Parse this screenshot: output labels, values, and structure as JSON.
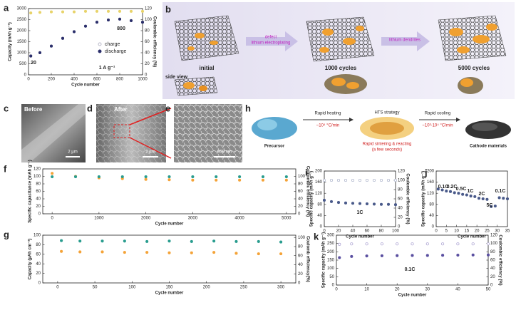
{
  "chart_data": [
    {
      "panel": "a",
      "type": "scatter",
      "x_label": "Cycle number",
      "y_label": "Capacity (mAh g⁻¹)",
      "y2_label": "Coulombic efficiency (%)",
      "x": [
        20,
        100,
        200,
        300,
        400,
        500,
        600,
        700,
        800,
        900,
        1000
      ],
      "series": [
        {
          "name": "charge",
          "color": "#b8b8c8",
          "marker": "open",
          "values": [
            870,
            1010,
            1310,
            1660,
            1960,
            2210,
            2390,
            2490,
            2530,
            2460,
            2390
          ]
        },
        {
          "name": "discharge",
          "color": "#2b2f6b",
          "marker": "filled",
          "values": [
            850,
            1000,
            1300,
            1650,
            1950,
            2200,
            2380,
            2480,
            2520,
            2450,
            2380
          ]
        },
        {
          "color": "#e8d36a",
          "marker": "filled",
          "axis": "y2",
          "values": [
            112,
            113,
            114,
            114,
            114,
            115,
            115,
            115,
            115,
            115,
            115
          ]
        }
      ],
      "xlim": [
        0,
        1000
      ],
      "xticks": [
        0,
        200,
        400,
        600,
        800,
        1000
      ],
      "ylim": [
        0,
        3000
      ],
      "yticks": [
        0,
        500,
        1000,
        1500,
        2000,
        2500,
        3000
      ],
      "y2lim": [
        0,
        120
      ],
      "y2ticks": [
        0,
        20,
        40,
        60,
        80,
        100,
        120
      ],
      "legend": "center-right",
      "annotations": [
        "20",
        "800",
        "1 A g⁻¹"
      ]
    },
    {
      "panel": "f",
      "type": "scatter",
      "x_label": "Cycle number",
      "y_label": "Specific capacitance (mAh g⁻¹)",
      "y2_label": "Coulombic efficiency (%)",
      "x": [
        0,
        500,
        1000,
        1500,
        2000,
        2500,
        3000,
        3500,
        4000,
        4500,
        5000
      ],
      "series": [
        {
          "color": "#f4a338",
          "marker": "filled",
          "values": [
            108,
            100,
            96,
            94,
            92,
            91,
            90,
            90,
            90,
            90,
            90
          ]
        },
        {
          "color": "#2a9d8f",
          "marker": "filled",
          "axis": "y2",
          "values": [
            99,
            99,
            99,
            99,
            99,
            99,
            99,
            99,
            99,
            99,
            99
          ]
        }
      ],
      "xlim": [
        -200,
        5200
      ],
      "xticks": [
        0,
        1000,
        2000,
        3000,
        4000,
        5000
      ],
      "ylim": [
        0,
        120
      ],
      "yticks": [
        0,
        20,
        40,
        60,
        80,
        100,
        120
      ],
      "y2lim": [
        0,
        120
      ],
      "y2ticks": [
        0,
        20,
        40,
        60,
        80,
        100
      ],
      "annotations": []
    },
    {
      "panel": "g",
      "type": "scatter",
      "x_label": "Cycle number",
      "y_label": "Capacity (µAh cm⁻²)",
      "y2_label": "Coulomb efficiency(%)",
      "x": [
        5,
        30,
        60,
        90,
        120,
        150,
        180,
        210,
        240,
        270,
        300
      ],
      "series": [
        {
          "color": "#f4a338",
          "marker": "filled",
          "values": [
            66,
            65,
            65,
            64,
            64,
            63,
            63,
            64,
            62,
            61,
            61
          ]
        },
        {
          "color": "#2a9d8f",
          "marker": "filled",
          "axis": "y2",
          "values": [
            93,
            92,
            92,
            92,
            91,
            92,
            91,
            92,
            91,
            91,
            90
          ]
        }
      ],
      "xlim": [
        -20,
        320
      ],
      "xticks": [
        0,
        50,
        100,
        150,
        200,
        250,
        300
      ],
      "ylim": [
        0,
        100
      ],
      "yticks": [
        0,
        20,
        40,
        60,
        80,
        100
      ],
      "y2lim": [
        0,
        105
      ],
      "y2ticks": [
        0,
        20,
        40,
        60,
        80,
        100
      ],
      "annotations": []
    },
    {
      "panel": "i",
      "type": "scatter",
      "x_label": "Cycle number",
      "y_label": "Specific capacity (mAh g⁻¹)",
      "y2_label": "Coulombic efficiency (%)",
      "x": [
        0,
        10,
        20,
        30,
        40,
        50,
        60,
        70,
        80,
        90,
        100
      ],
      "series": [
        {
          "color": "#4a5a8a",
          "marker": "filled",
          "values": [
            95,
            90,
            87,
            85,
            84,
            83,
            82,
            81,
            80,
            80,
            79
          ]
        },
        {
          "color": "#a8b0c8",
          "marker": "open",
          "axis": "y2",
          "values": [
            100,
            100,
            100,
            100,
            100,
            100,
            100,
            100,
            100,
            100,
            100
          ]
        }
      ],
      "xlim": [
        0,
        100
      ],
      "xticks": [
        0,
        20,
        40,
        60,
        80,
        100
      ],
      "ylim": [
        0,
        200
      ],
      "yticks": [
        0,
        40,
        80,
        120,
        160,
        200
      ],
      "y2lim": [
        0,
        120
      ],
      "y2ticks": [
        0,
        20,
        40,
        60,
        80,
        100,
        120
      ],
      "annotations": [
        "1C"
      ]
    },
    {
      "panel": "j",
      "type": "scatter",
      "x_label": "Cycle number",
      "y_label": "Specific capacity (mAh g⁻¹)",
      "x": [
        1,
        3,
        5,
        7,
        9,
        11,
        13,
        15,
        17,
        19,
        21,
        23,
        25,
        27,
        29,
        31,
        33,
        35
      ],
      "series": [
        {
          "color": "#4a5a8a",
          "marker": "filled",
          "values": [
            135,
            132,
            128,
            126,
            122,
            120,
            116,
            114,
            110,
            108,
            102,
            100,
            98,
            72,
            74,
            104,
            102,
            100
          ]
        }
      ],
      "xlim": [
        0,
        35
      ],
      "xticks": [
        0,
        5,
        10,
        15,
        20,
        25,
        30,
        35
      ],
      "ylim": [
        0,
        200
      ],
      "yticks": [
        0,
        40,
        80,
        120,
        160,
        200
      ],
      "annotations": [
        "0.1C",
        "0.2C",
        "0.5C",
        "1C",
        "2C",
        "5C",
        "0.1C"
      ]
    },
    {
      "panel": "k",
      "type": "scatter",
      "x_label": "Cycle number",
      "y_label": "Specific capacity (mAh g⁻¹)",
      "y2_label": "Coulombic efficiency (%)",
      "x": [
        1,
        5,
        10,
        15,
        20,
        25,
        30,
        35,
        40,
        45,
        50
      ],
      "series": [
        {
          "color": "#5a4fa0",
          "marker": "filled",
          "values": [
            165,
            172,
            175,
            176,
            177,
            178,
            178,
            179,
            180,
            181,
            181
          ]
        },
        {
          "color": "#a89fd0",
          "marker": "open",
          "axis": "y2",
          "values": [
            98,
            99,
            99,
            99,
            99,
            99,
            99,
            99,
            99,
            99,
            99
          ]
        }
      ],
      "xlim": [
        0,
        50
      ],
      "xticks": [
        0,
        10,
        20,
        30,
        40,
        50
      ],
      "ylim": [
        0,
        300
      ],
      "yticks": [
        0,
        50,
        100,
        150,
        200,
        250,
        300
      ],
      "y2lim": [
        0,
        120
      ],
      "y2ticks": [
        0,
        20,
        40,
        60,
        80,
        100,
        120
      ],
      "annotations": [
        "0.1C"
      ]
    }
  ],
  "panel_b": {
    "label": "b",
    "stages": [
      "initial",
      "1000 cycles",
      "5000 cycles"
    ],
    "side_view": "side view",
    "arrow_1": [
      "defect",
      "lithium electroplating"
    ],
    "arrow_2": "lithium dendrites"
  },
  "panel_sem": {
    "labels": [
      "c",
      "d",
      "e"
    ],
    "captions": [
      "Before",
      "After"
    ],
    "scale_bars": [
      "2 µm",
      "2 µm",
      "500 nm"
    ]
  },
  "panel_h": {
    "label": "h",
    "precursor": "Precursor",
    "heating": "Rapid heating",
    "heating_rate": "~10⁴ °C/min",
    "strategy": "HTS strategy",
    "sintering": "Rapid sintering & reacting",
    "duration": "(a few seconds)",
    "cooling": "Rapid cooling",
    "cooling_rate": "~10³-10⁴ °C/min",
    "product": "Cathode materials"
  }
}
